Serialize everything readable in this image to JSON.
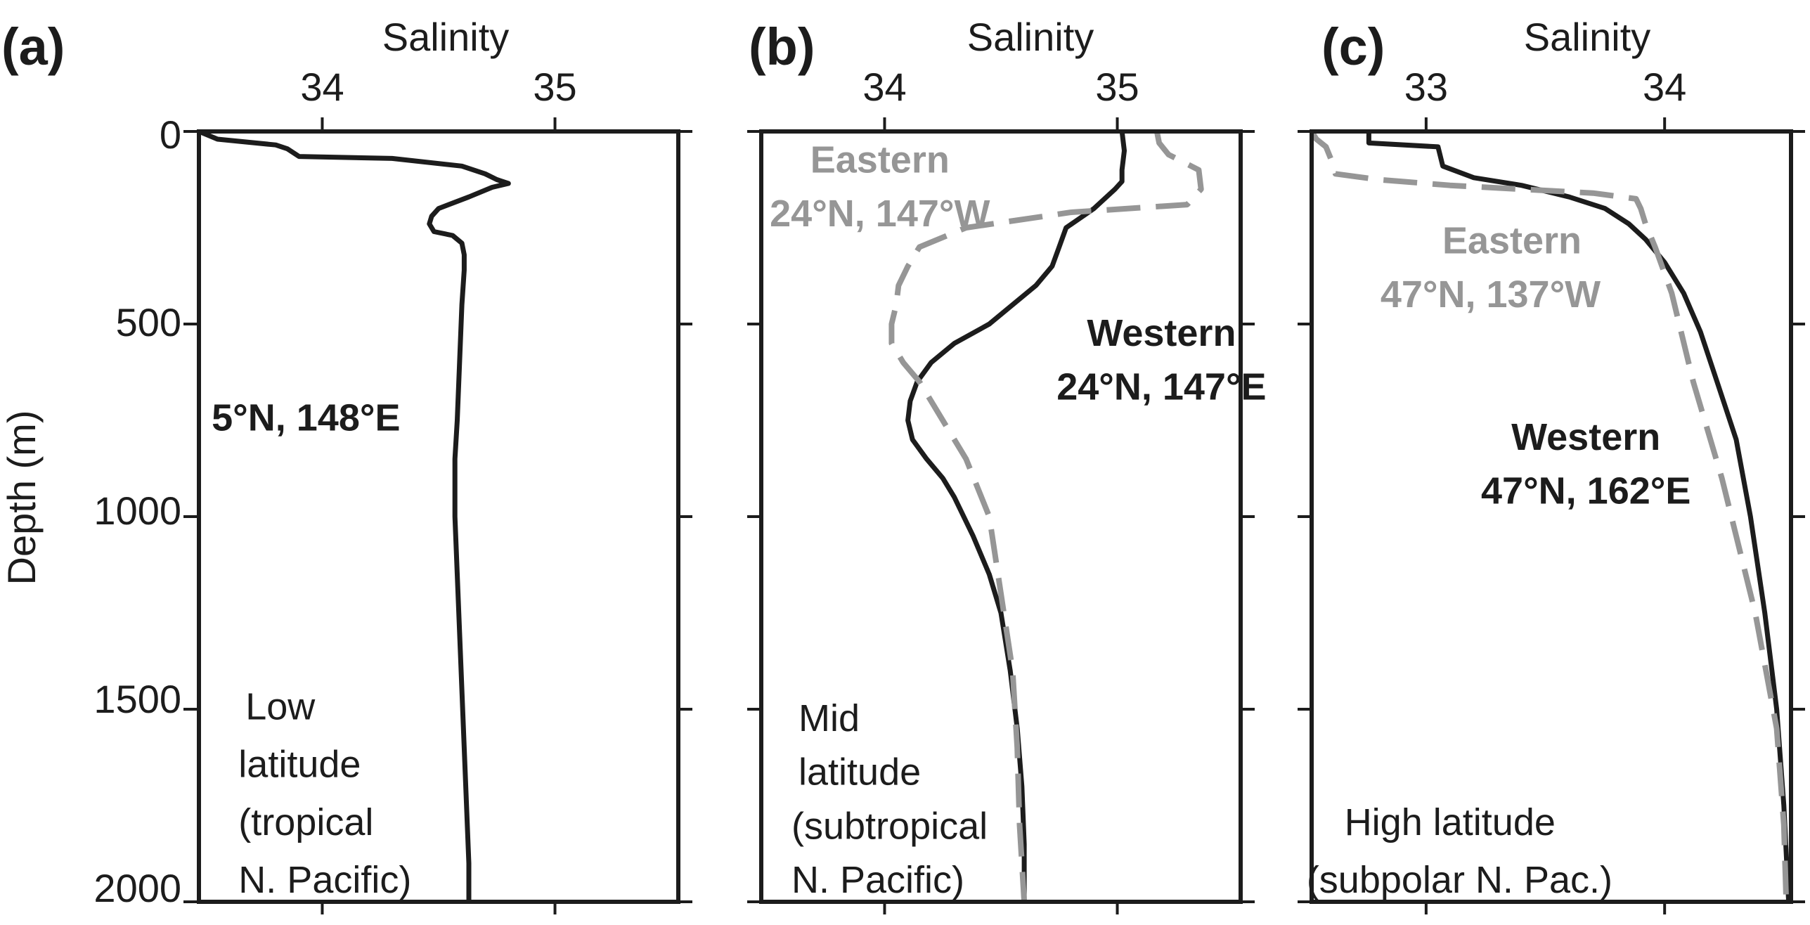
{
  "figure": {
    "ylabel": "Depth (m)",
    "y_ticks": [
      "0",
      "500",
      "1000",
      "1500",
      "2000"
    ]
  },
  "chart_data": [
    {
      "type": "line",
      "panel_label": "(a)",
      "xlabel": "Salinity",
      "ylabel": "Depth (m)",
      "xlim": [
        33.47,
        35.53
      ],
      "ylim": [
        2000,
        0
      ],
      "x_ticks": [
        34,
        35
      ],
      "x_tick_labels": [
        "34",
        "35"
      ],
      "y_ticks": [
        0,
        500,
        1000,
        1500,
        2000
      ],
      "y_tick_labels": [
        "0",
        "500",
        "1000",
        "1500",
        "2000"
      ],
      "annotations": [
        {
          "text": "5°N, 148°E",
          "x": 33.93,
          "depth": 740,
          "anchor": "middle",
          "weight": "bold",
          "color": "#1c1c1c"
        },
        {
          "text": "Low",
          "x": 33.67,
          "depth": 1490,
          "anchor": "start",
          "weight": "normal",
          "color": "#1c1c1c"
        },
        {
          "text": "latitude",
          "x": 33.64,
          "depth": 1640,
          "anchor": "start",
          "weight": "normal",
          "color": "#1c1c1c"
        },
        {
          "text": "(tropical",
          "x": 33.64,
          "depth": 1790,
          "anchor": "start",
          "weight": "normal",
          "color": "#1c1c1c"
        },
        {
          "text": "N. Pacific)",
          "x": 33.64,
          "depth": 1940,
          "anchor": "start",
          "weight": "normal",
          "color": "#1c1c1c"
        }
      ],
      "series": [
        {
          "style": "solid",
          "color": "#1c1c1c",
          "x": [
            33.47,
            33.55,
            33.8,
            33.85,
            33.9,
            34.3,
            34.6,
            34.7,
            34.75,
            34.8,
            34.73,
            34.63,
            34.5,
            34.47,
            34.46,
            34.48,
            34.56,
            34.6,
            34.61,
            34.61,
            34.6,
            34.59,
            34.58,
            34.57,
            34.57,
            34.58,
            34.59,
            34.6,
            34.61,
            34.62,
            34.63,
            34.63
          ],
          "y": [
            0,
            20,
            35,
            45,
            65,
            70,
            90,
            110,
            125,
            135,
            145,
            170,
            200,
            220,
            240,
            260,
            270,
            290,
            320,
            360,
            450,
            600,
            750,
            850,
            1000,
            1150,
            1300,
            1450,
            1600,
            1750,
            1900,
            2000
          ]
        }
      ]
    },
    {
      "type": "line",
      "panel_label": "(b)",
      "xlabel": "Salinity",
      "ylabel": "",
      "xlim": [
        33.47,
        35.53
      ],
      "ylim": [
        2000,
        0
      ],
      "x_ticks": [
        34,
        35
      ],
      "x_tick_labels": [
        "34",
        "35"
      ],
      "y_ticks": [
        0,
        500,
        1000,
        1500,
        2000
      ],
      "annotations": [
        {
          "text": "Eastern",
          "x": 33.98,
          "depth": 70,
          "anchor": "middle",
          "weight": "bold",
          "color": "#969696"
        },
        {
          "text": "24°N, 147°W",
          "x": 33.98,
          "depth": 210,
          "anchor": "middle",
          "weight": "bold",
          "color": "#969696"
        },
        {
          "text": "Western",
          "x": 35.19,
          "depth": 520,
          "anchor": "middle",
          "weight": "bold",
          "color": "#1c1c1c"
        },
        {
          "text": "24°N, 147°E",
          "x": 35.19,
          "depth": 660,
          "anchor": "middle",
          "weight": "bold",
          "color": "#1c1c1c"
        },
        {
          "text": "Mid",
          "x": 33.63,
          "depth": 1520,
          "anchor": "start",
          "weight": "normal",
          "color": "#1c1c1c"
        },
        {
          "text": "latitude",
          "x": 33.63,
          "depth": 1660,
          "anchor": "start",
          "weight": "normal",
          "color": "#1c1c1c"
        },
        {
          "text": "(subtropical",
          "x": 33.6,
          "depth": 1800,
          "anchor": "start",
          "weight": "normal",
          "color": "#1c1c1c"
        },
        {
          "text": "N. Pacific)",
          "x": 33.6,
          "depth": 1940,
          "anchor": "start",
          "weight": "normal",
          "color": "#1c1c1c"
        }
      ],
      "series": [
        {
          "name": "Western",
          "style": "solid",
          "color": "#1c1c1c",
          "x": [
            35.02,
            35.03,
            35.02,
            35.02,
            34.99,
            34.9,
            34.78,
            34.75,
            34.72,
            34.65,
            34.45,
            34.3,
            34.2,
            34.14,
            34.11,
            34.1,
            34.12,
            34.18,
            34.25,
            34.3,
            34.38,
            34.45,
            34.5,
            34.54,
            34.57,
            34.59,
            34.6,
            34.6
          ],
          "y": [
            0,
            50,
            100,
            130,
            150,
            200,
            250,
            300,
            350,
            400,
            500,
            550,
            600,
            650,
            700,
            750,
            800,
            850,
            900,
            950,
            1050,
            1150,
            1250,
            1400,
            1550,
            1700,
            1850,
            2000
          ]
        },
        {
          "name": "Eastern",
          "style": "dashed",
          "color": "#969696",
          "x": [
            35.17,
            35.18,
            35.22,
            35.35,
            35.36,
            35.3,
            34.8,
            34.35,
            34.15,
            34.1,
            34.06,
            34.05,
            34.03,
            34.03,
            34.08,
            34.15,
            34.25,
            34.35,
            34.45,
            34.5,
            34.55,
            34.57,
            34.58,
            34.6
          ],
          "y": [
            0,
            30,
            60,
            100,
            150,
            190,
            210,
            250,
            300,
            350,
            400,
            450,
            500,
            550,
            600,
            650,
            750,
            850,
            1000,
            1200,
            1400,
            1600,
            1800,
            2000
          ]
        }
      ]
    },
    {
      "type": "line",
      "panel_label": "(c)",
      "xlabel": "Salinity",
      "ylabel": "",
      "xlim": [
        32.52,
        34.53
      ],
      "ylim": [
        2000,
        0
      ],
      "x_ticks": [
        33,
        34
      ],
      "x_tick_labels": [
        "33",
        "34"
      ],
      "y_ticks": [
        0,
        500,
        1000,
        1500,
        2000
      ],
      "annotations": [
        {
          "text": "Eastern",
          "x": 33.36,
          "depth": 280,
          "anchor": "middle",
          "weight": "bold",
          "color": "#969696"
        },
        {
          "text": "47°N, 137°W",
          "x": 33.27,
          "depth": 420,
          "anchor": "middle",
          "weight": "bold",
          "color": "#969696"
        },
        {
          "text": "Western",
          "x": 33.67,
          "depth": 790,
          "anchor": "middle",
          "weight": "bold",
          "color": "#1c1c1c"
        },
        {
          "text": "47°N, 162°E",
          "x": 33.67,
          "depth": 930,
          "anchor": "middle",
          "weight": "bold",
          "color": "#1c1c1c"
        },
        {
          "text": "High latitude",
          "x": 33.1,
          "depth": 1790,
          "anchor": "middle",
          "weight": "normal",
          "color": "#1c1c1c"
        },
        {
          "text": "(subpolar N. Pac.)",
          "x": 33.14,
          "depth": 1940,
          "anchor": "middle",
          "weight": "normal",
          "color": "#1c1c1c"
        }
      ],
      "series": [
        {
          "name": "Western",
          "style": "solid",
          "color": "#1c1c1c",
          "x": [
            32.76,
            32.76,
            33.05,
            33.07,
            33.2,
            33.4,
            33.6,
            33.75,
            33.85,
            33.92,
            34.0,
            34.08,
            34.15,
            34.22,
            34.3,
            34.36,
            34.42,
            34.47,
            34.5,
            34.52
          ],
          "y": [
            0,
            30,
            40,
            90,
            120,
            140,
            170,
            200,
            240,
            280,
            340,
            420,
            520,
            650,
            800,
            1000,
            1250,
            1500,
            1750,
            2000
          ],
          "hidden_below": 0
        },
        {
          "name": "Eastern",
          "style": "dashed",
          "color": "#969696",
          "x": [
            32.52,
            32.54,
            32.58,
            32.6,
            32.62,
            32.8,
            33.1,
            33.4,
            33.7,
            33.88,
            33.9,
            33.92,
            33.96,
            34.03,
            34.12,
            34.24,
            34.38,
            34.47,
            34.5,
            34.51
          ],
          "y": [
            0,
            20,
            40,
            70,
            110,
            125,
            140,
            150,
            160,
            175,
            200,
            240,
            300,
            420,
            650,
            900,
            1250,
            1550,
            1800,
            2000
          ]
        }
      ]
    }
  ]
}
